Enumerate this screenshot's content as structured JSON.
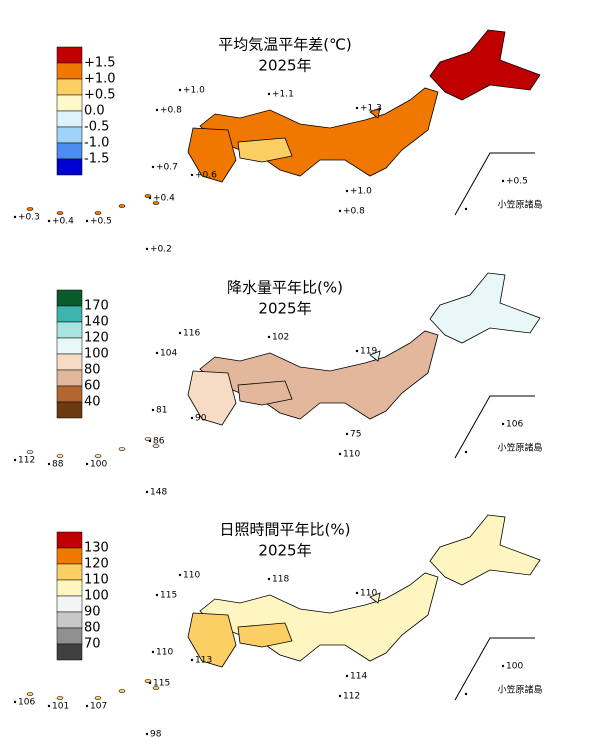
{
  "panels": [
    {
      "title": "平均気温平年差(℃)",
      "subtitle": "2025年",
      "legend": {
        "labels": [
          "+1.5",
          "+1.0",
          "+0.5",
          "0.0",
          "-0.5",
          "-1.0",
          "-1.5"
        ],
        "colors": [
          "#c00000",
          "#f07800",
          "#fbcf63",
          "#fff8c8",
          "#dff3ff",
          "#9fd4f8",
          "#4b8df0",
          "#0000d0"
        ]
      },
      "stations": [
        "+1.0",
        "+1.1",
        "+0.8",
        "+1.3",
        "+0.7",
        "+0.6",
        "+0.5",
        "+1.0",
        "+0.8",
        "+0.3",
        "+0.4",
        "+0.5",
        "+0.4",
        "+0.2"
      ],
      "inset_label": "小笠原諸島"
    },
    {
      "title": "降水量平年比(%)",
      "subtitle": "2025年",
      "legend": {
        "labels": [
          "170",
          "140",
          "120",
          "100",
          "80",
          "60",
          "40"
        ],
        "colors": [
          "#0a5a2a",
          "#3eb4b0",
          "#a8e4e0",
          "#e8f8f8",
          "#f6dcc4",
          "#e3b79c",
          "#b5652f",
          "#6b3a10"
        ]
      },
      "stations": [
        "116",
        "102",
        "104",
        "119",
        "81",
        "90",
        "106",
        "75",
        "110",
        "112",
        "88",
        "100",
        "86",
        "148"
      ],
      "inset_label": "小笠原諸島"
    },
    {
      "title": "日照時間平年比(%)",
      "subtitle": "2025年",
      "legend": {
        "labels": [
          "130",
          "120",
          "110",
          "100",
          "90",
          "80",
          "70"
        ],
        "colors": [
          "#c00000",
          "#f07800",
          "#fbcf63",
          "#fff5c0",
          "#f4f4f4",
          "#c8c8c8",
          "#909090",
          "#404040"
        ]
      },
      "stations": [
        "110",
        "118",
        "115",
        "110",
        "110",
        "113",
        "100",
        "114",
        "112",
        "106",
        "101",
        "107",
        "115",
        "98"
      ],
      "inset_label": "小笠原諸島"
    }
  ]
}
